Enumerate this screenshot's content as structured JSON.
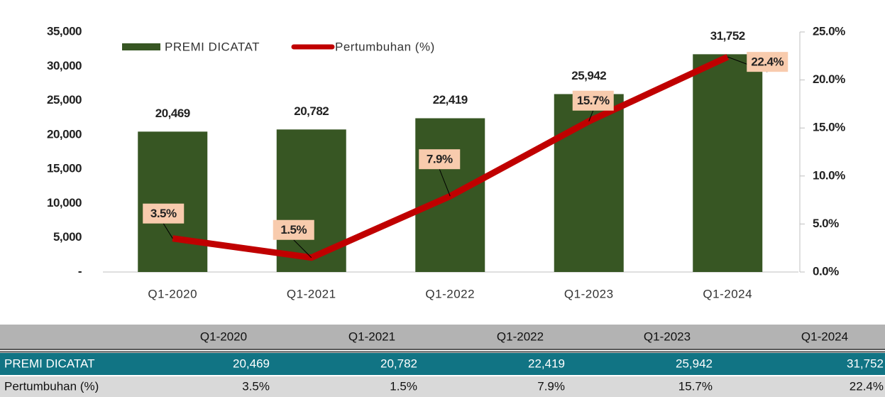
{
  "chart_data": {
    "type": "bar",
    "categories": [
      "Q1-2020",
      "Q1-2021",
      "Q1-2022",
      "Q1-2023",
      "Q1-2024"
    ],
    "series": [
      {
        "name": "PREMI DICATAT",
        "type": "bar",
        "color": "#375623",
        "values": [
          20469,
          20782,
          22419,
          25942,
          31752
        ],
        "value_labels": [
          "20,469",
          "20,782",
          "22,419",
          "25,942",
          "31,752"
        ]
      },
      {
        "name": "Pertumbuhan (%)",
        "type": "line",
        "axis": "y2",
        "color": "#c00000",
        "label_fill": "#f8cbad",
        "values": [
          3.5,
          1.5,
          7.9,
          15.7,
          22.4
        ],
        "value_labels": [
          "3.5%",
          "1.5%",
          "7.9%",
          "15.7%",
          "22.4%"
        ]
      }
    ],
    "ylim": [
      0,
      35000
    ],
    "yticks": [
      {
        "value": 0,
        "label": "-"
      },
      {
        "value": 5000,
        "label": "5,000"
      },
      {
        "value": 10000,
        "label": "10,000"
      },
      {
        "value": 15000,
        "label": "15,000"
      },
      {
        "value": 20000,
        "label": "20,000"
      },
      {
        "value": 25000,
        "label": "25,000"
      },
      {
        "value": 30000,
        "label": "30,000"
      },
      {
        "value": 35000,
        "label": "35,000"
      }
    ],
    "y2lim": [
      0,
      25
    ],
    "y2ticks": [
      {
        "value": 0,
        "label": "0.0%"
      },
      {
        "value": 5,
        "label": "5.0%"
      },
      {
        "value": 10,
        "label": "10.0%"
      },
      {
        "value": 15,
        "label": "15.0%"
      },
      {
        "value": 20,
        "label": "20.0%"
      },
      {
        "value": 25,
        "label": "25.0%"
      }
    ],
    "legend": "top-left"
  }
}
